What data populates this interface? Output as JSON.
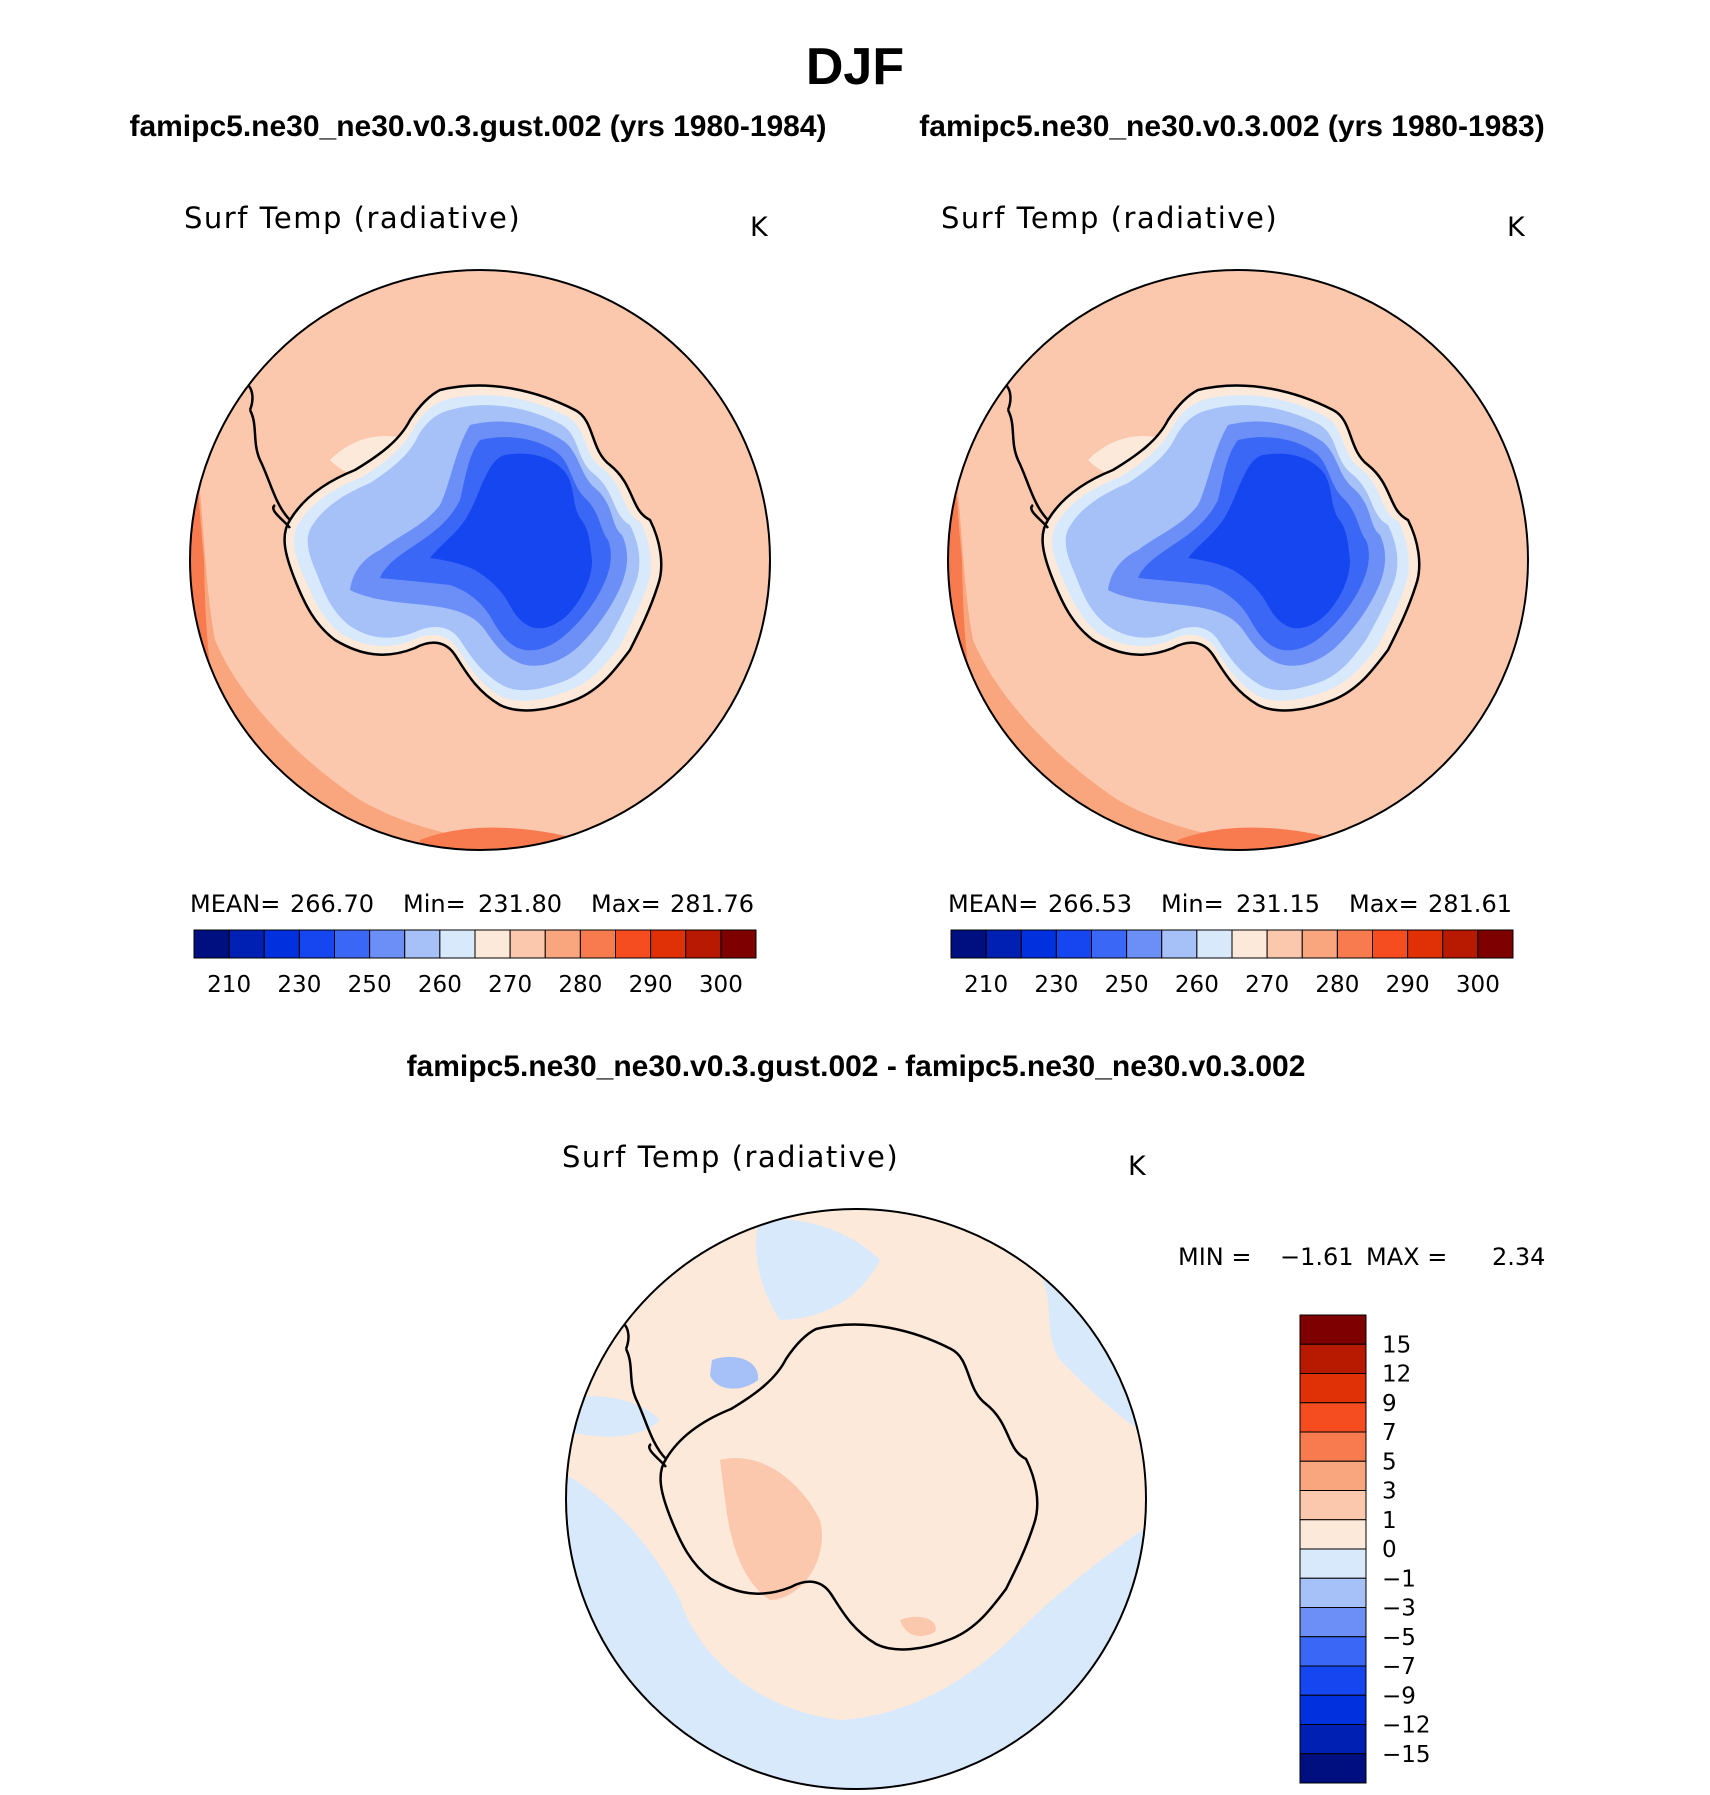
{
  "figure": {
    "title": "DJF",
    "subtitle_left": "famipc5.ne30_ne30.v0.3.gust.002 (yrs 1980-1984)",
    "subtitle_right": "famipc5.ne30_ne30.v0.3.002 (yrs 1980-1983)",
    "diff_title": "famipc5.ne30_ne30.v0.3.gust.002 - famipc5.ne30_ne30.v0.3.002"
  },
  "chart_data": [
    {
      "type": "heatmap",
      "projection": "south-polar-stereographic",
      "title": "Surf Temp (radiative)",
      "units": "K",
      "stats": {
        "mean_label": "MEAN=",
        "mean": "266.70",
        "min_label": "Min=",
        "min": "231.80",
        "max_label": "Max=",
        "max": "281.76"
      },
      "levels": [
        210,
        220,
        230,
        240,
        250,
        255,
        260,
        265,
        270,
        275,
        280,
        285,
        290,
        295,
        300
      ],
      "tick_labels": [
        "210",
        "230",
        "250",
        "260",
        "270",
        "280",
        "290",
        "300"
      ],
      "colors": [
        "#000f7f",
        "#0020b3",
        "#0131df",
        "#1546f0",
        "#3a67f5",
        "#6b8ff6",
        "#a6c0f8",
        "#d8e9fc",
        "#fde9da",
        "#fcc8ad",
        "#f9a57e",
        "#f87a4f",
        "#f64d20",
        "#df3006",
        "#b71a00",
        "#7f0000"
      ],
      "legend_position": "bottom",
      "colorbar_orientation": "horizontal"
    },
    {
      "type": "heatmap",
      "projection": "south-polar-stereographic",
      "title": "Surf Temp (radiative)",
      "units": "K",
      "stats": {
        "mean_label": "MEAN=",
        "mean": "266.53",
        "min_label": "Min=",
        "min": "231.15",
        "max_label": "Max=",
        "max": "281.61"
      },
      "levels": [
        210,
        220,
        230,
        240,
        250,
        255,
        260,
        265,
        270,
        275,
        280,
        285,
        290,
        295,
        300
      ],
      "tick_labels": [
        "210",
        "230",
        "250",
        "260",
        "270",
        "280",
        "290",
        "300"
      ],
      "colors": [
        "#000f7f",
        "#0020b3",
        "#0131df",
        "#1546f0",
        "#3a67f5",
        "#6b8ff6",
        "#a6c0f8",
        "#d8e9fc",
        "#fde9da",
        "#fcc8ad",
        "#f9a57e",
        "#f87a4f",
        "#f64d20",
        "#df3006",
        "#b71a00",
        "#7f0000"
      ],
      "legend_position": "bottom",
      "colorbar_orientation": "horizontal"
    },
    {
      "type": "heatmap",
      "projection": "south-polar-stereographic",
      "title": "Surf Temp (radiative)",
      "units": "K",
      "stats": {
        "min_label": "MIN =",
        "min": "−1.61",
        "max_label": "MAX =",
        "max": "2.34"
      },
      "levels": [
        15,
        12,
        9,
        7,
        5,
        3,
        1,
        0,
        -1,
        -3,
        -5,
        -7,
        -9,
        -12,
        -15
      ],
      "tick_labels": [
        "15",
        "12",
        "9",
        "7",
        "5",
        "3",
        "1",
        "0",
        "−1",
        "−3",
        "−5",
        "−7",
        "−9",
        "−12",
        "−15"
      ],
      "colors": [
        "#7f0000",
        "#b71a00",
        "#df3006",
        "#f64d20",
        "#f87a4f",
        "#f9a57e",
        "#fcc8ad",
        "#fde9da",
        "#d8e9fc",
        "#a6c0f8",
        "#6b8ff6",
        "#3a67f5",
        "#1546f0",
        "#0131df",
        "#0020b3",
        "#000f7f"
      ],
      "legend_position": "right",
      "colorbar_orientation": "vertical"
    }
  ]
}
